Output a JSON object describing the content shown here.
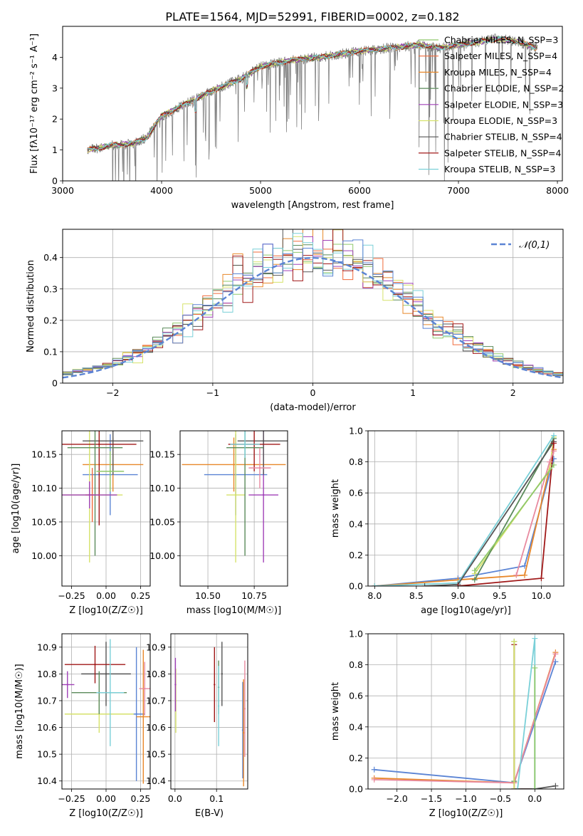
{
  "figure_title": "PLATE=1564, MJD=52991, FIBERID=0002, z=0.182",
  "colors": [
    "#8fc86b",
    "#f06a3a",
    "#e8882a",
    "#5a8a5a",
    "#a040b8",
    "#d6e26a",
    "#555555",
    "#a01818",
    "#7ad0d8",
    "#e88aa0",
    "#5b84d4"
  ],
  "chart_data": [
    {
      "id": "spectrum",
      "type": "line",
      "title": "PLATE=1564, MJD=52991, FIBERID=0002, z=0.182",
      "xlabel": "wavelength [Angstrom, rest frame]",
      "ylabel": "Flux [fλ10⁻¹⁷ erg cm⁻² s⁻¹ A⁻¹]",
      "xlim": [
        3000,
        8050
      ],
      "ylim": [
        0,
        5
      ],
      "xticks": [
        "3000",
        "4000",
        "5000",
        "6000",
        "7000",
        "8000"
      ],
      "yticks": [
        "0",
        "1",
        "2",
        "3",
        "4"
      ],
      "legend_position": "right",
      "grid": false,
      "continuum": {
        "x": [
          3250,
          3500,
          3700,
          3850,
          4000,
          4250,
          4500,
          4800,
          5000,
          5300,
          5600,
          6000,
          6300,
          6600,
          6800,
          7000,
          7200,
          7400,
          7600,
          7800
        ],
        "y": [
          1.0,
          1.15,
          1.2,
          1.4,
          2.1,
          2.5,
          2.9,
          3.3,
          3.7,
          3.9,
          4.0,
          4.2,
          4.3,
          4.4,
          4.3,
          4.4,
          4.5,
          4.6,
          4.5,
          4.3
        ]
      },
      "series": [
        {
          "name": "Chabrier MILES, N_SSP=3"
        },
        {
          "name": "Salpeter MILES, N_SSP=4"
        },
        {
          "name": "Kroupa MILES, N_SSP=4"
        },
        {
          "name": "Chabrier ELODIE, N_SSP=2"
        },
        {
          "name": "Salpeter ELODIE, N_SSP=3"
        },
        {
          "name": "Kroupa ELODIE, N_SSP=3"
        },
        {
          "name": "Chabrier STELIB, N_SSP=4"
        },
        {
          "name": "Salpeter STELIB, N_SSP=4"
        },
        {
          "name": "Kroupa STELIB, N_SSP=3"
        }
      ]
    },
    {
      "id": "residuals",
      "type": "line",
      "xlabel": "(data-model)/error",
      "ylabel": "Normed distribution",
      "xlim": [
        -2.5,
        2.5
      ],
      "ylim": [
        0,
        0.49
      ],
      "xticks": [
        -2,
        -1,
        0,
        1,
        2
      ],
      "yticks": [
        0.0,
        0.1,
        0.2,
        0.3,
        0.4
      ],
      "grid": true,
      "legend_position": "top-right",
      "legend": "𝒩(0,1)",
      "normal_curve": {
        "mean": 0,
        "sigma": 1
      },
      "histogram_bin_width": 0.1,
      "histogram_series": 9
    },
    {
      "id": "age_vs_Z",
      "type": "scatter",
      "xlabel": "Z [log10(Z/Z☉)]",
      "ylabel": "age [log10(age/yr)]",
      "xlim": [
        -0.32,
        0.32
      ],
      "ylim": [
        9.955,
        10.185
      ],
      "xticks": [
        "−0.25",
        "0.00",
        "0.25"
      ],
      "yticks": [
        "10.00",
        "10.05",
        "10.10",
        "10.15"
      ],
      "grid": true,
      "points": [
        {
          "x": 0.03,
          "y": 10.12,
          "c": 10,
          "xe": 0.2,
          "ye": 0.06
        },
        {
          "x": 0.05,
          "y": 10.135,
          "c": 2,
          "xe": 0.22,
          "ye": 0.04
        },
        {
          "x": -0.12,
          "y": 10.09,
          "c": 5,
          "xe": 0.24,
          "ye": 0.1
        },
        {
          "x": -0.1,
          "y": 10.09,
          "c": 1,
          "xe": 0.05,
          "ye": 0.04
        },
        {
          "x": 0.05,
          "y": 10.17,
          "c": 6,
          "xe": 0.22,
          "ye": 0.05
        },
        {
          "x": -0.05,
          "y": 10.165,
          "c": 7,
          "xe": 0.27,
          "ye": 0.12
        },
        {
          "x": -0.08,
          "y": 10.16,
          "c": 3,
          "xe": 0.2,
          "ye": 0.16
        },
        {
          "x": -0.12,
          "y": 10.09,
          "c": 4,
          "xe": 0.2,
          "ye": 0.02
        },
        {
          "x": 0.03,
          "y": 10.125,
          "c": 0,
          "xe": 0.1,
          "ye": 0.03
        }
      ]
    },
    {
      "id": "age_vs_mass",
      "type": "scatter",
      "xlabel": "mass [log10(M/M☉)]",
      "ylabel": "",
      "xlim": [
        10.35,
        10.93
      ],
      "ylim": [
        9.955,
        10.185
      ],
      "xticks": [
        "10.50",
        "10.75"
      ],
      "yticks": [
        "10.00",
        "10.05",
        "10.10",
        "10.15"
      ],
      "grid": true,
      "points": [
        {
          "x": 10.65,
          "y": 10.12,
          "c": 10,
          "xe": 0.17,
          "ye": 0.06
        },
        {
          "x": 10.64,
          "y": 10.135,
          "c": 2,
          "xe": 0.28,
          "ye": 0.04
        },
        {
          "x": 10.65,
          "y": 10.09,
          "c": 5,
          "xe": 0.05,
          "ye": 0.1
        },
        {
          "x": 10.8,
          "y": 10.09,
          "c": 4,
          "xe": 0.08,
          "ye": 0.1
        },
        {
          "x": 10.8,
          "y": 10.17,
          "c": 6,
          "xe": 0.14,
          "ye": 0.05
        },
        {
          "x": 10.75,
          "y": 10.165,
          "c": 7,
          "xe": 0.14,
          "ye": 0.04
        },
        {
          "x": 10.7,
          "y": 10.16,
          "c": 3,
          "xe": 0.1,
          "ye": 0.16
        },
        {
          "x": 10.7,
          "y": 10.165,
          "c": 8,
          "xe": 0.08,
          "ye": 0.02
        },
        {
          "x": 10.78,
          "y": 10.13,
          "c": 9,
          "xe": 0.06,
          "ye": 0.03
        }
      ]
    },
    {
      "id": "mass_weight_vs_age",
      "type": "line",
      "xlabel": "age [log10(age/yr)]",
      "ylabel": "mass weight",
      "xlim": [
        7.92,
        10.27
      ],
      "ylim": [
        0,
        1.0
      ],
      "xticks": [
        "8.0",
        "8.5",
        "9.0",
        "9.5",
        "10.0"
      ],
      "yticks": [
        "0.0",
        "0.2",
        "0.4",
        "0.6",
        "0.8",
        "1.0"
      ],
      "grid": true,
      "series": [
        {
          "c": 10,
          "x": [
            8.0,
            9.0,
            9.8,
            10.15
          ],
          "y": [
            0.0,
            0.05,
            0.13,
            0.82
          ]
        },
        {
          "c": 2,
          "x": [
            8.0,
            9.0,
            9.8,
            10.15
          ],
          "y": [
            0.0,
            0.04,
            0.07,
            0.88
          ]
        },
        {
          "c": 5,
          "x": [
            9.2,
            10.1,
            10.15
          ],
          "y": [
            0.08,
            0.75,
            0.96
          ]
        },
        {
          "c": 3,
          "x": [
            9.2,
            10.15
          ],
          "y": [
            0.04,
            0.95
          ]
        },
        {
          "c": 8,
          "x": [
            8.0,
            9.0,
            10.15
          ],
          "y": [
            0.0,
            0.02,
            0.97
          ]
        },
        {
          "c": 6,
          "x": [
            8.6,
            9.0,
            10.15
          ],
          "y": [
            0.0,
            0.01,
            0.93
          ]
        },
        {
          "c": 7,
          "x": [
            9.0,
            10.0,
            10.15
          ],
          "y": [
            0.0,
            0.05,
            0.92
          ]
        },
        {
          "c": 9,
          "x": [
            9.7,
            10.1,
            10.15
          ],
          "y": [
            0.07,
            0.8,
            0.87
          ]
        },
        {
          "c": 0,
          "x": [
            9.2,
            10.15
          ],
          "y": [
            0.1,
            0.78
          ]
        }
      ]
    },
    {
      "id": "mass_vs_Z",
      "type": "scatter",
      "xlabel": "Z [log10(Z/Z☉)]",
      "ylabel": "mass [log10(M/M☉)]",
      "xlim": [
        -0.32,
        0.32
      ],
      "ylim": [
        10.37,
        10.95
      ],
      "xticks": [
        "−0.25",
        "0.00",
        "0.25"
      ],
      "yticks": [
        "10.4",
        "10.5",
        "10.6",
        "10.7",
        "10.8",
        "10.9"
      ],
      "grid": true,
      "points": [
        {
          "x": 0.22,
          "y": 10.65,
          "c": 10,
          "xe": 0.06,
          "ye": 0.25
        },
        {
          "x": 0.27,
          "y": 10.64,
          "c": 2,
          "xe": 0.05,
          "ye": 0.25
        },
        {
          "x": -0.05,
          "y": 10.65,
          "c": 5,
          "xe": 0.25,
          "ye": 0.07
        },
        {
          "x": -0.28,
          "y": 10.76,
          "c": 4,
          "xe": 0.05,
          "ye": 0.05
        },
        {
          "x": 0.0,
          "y": 10.8,
          "c": 6,
          "xe": 0.18,
          "ye": 0.12
        },
        {
          "x": -0.08,
          "y": 10.835,
          "c": 7,
          "xe": 0.22,
          "ye": 0.07
        },
        {
          "x": -0.05,
          "y": 10.73,
          "c": 3,
          "xe": 0.2,
          "ye": 0.08
        },
        {
          "x": 0.03,
          "y": 10.73,
          "c": 8,
          "xe": 0.1,
          "ye": 0.2
        },
        {
          "x": 0.28,
          "y": 10.745,
          "c": 9,
          "xe": 0.04,
          "ye": 0.1
        }
      ]
    },
    {
      "id": "mass_vs_EBV",
      "type": "scatter",
      "xlabel": "E(B-V)",
      "ylabel": "",
      "xlim": [
        -0.01,
        0.175
      ],
      "ylim": [
        10.37,
        10.95
      ],
      "xticks": [
        "0.0",
        "0.1"
      ],
      "yticks": [
        "10.4",
        "10.5",
        "10.6",
        "10.7",
        "10.8",
        "10.9"
      ],
      "grid": true,
      "points": [
        {
          "x": 0.163,
          "y": 10.59,
          "c": 10,
          "ye": 0.18
        },
        {
          "x": 0.165,
          "y": 10.58,
          "c": 2,
          "ye": 0.2
        },
        {
          "x": 0.002,
          "y": 10.7,
          "c": 5,
          "ye": 0.12
        },
        {
          "x": 0.001,
          "y": 10.76,
          "c": 4,
          "ye": 0.1
        },
        {
          "x": 0.113,
          "y": 10.8,
          "c": 6,
          "ye": 0.12
        },
        {
          "x": 0.095,
          "y": 10.76,
          "c": 7,
          "ye": 0.14
        },
        {
          "x": 0.105,
          "y": 10.75,
          "c": 3,
          "ye": 0.1
        },
        {
          "x": 0.105,
          "y": 10.68,
          "c": 8,
          "ye": 0.15
        },
        {
          "x": 0.168,
          "y": 10.67,
          "c": 9,
          "ye": 0.18
        }
      ]
    },
    {
      "id": "mass_weight_vs_Z",
      "type": "line",
      "xlabel": "Z [log10(Z/Z☉)]",
      "ylabel": "mass weight",
      "xlim": [
        -2.42,
        0.42
      ],
      "ylim": [
        0,
        1.0
      ],
      "xticks": [
        "−2.0",
        "−1.5",
        "−1.0",
        "−0.5",
        "0.0"
      ],
      "yticks": [
        "0.0",
        "0.2",
        "0.4",
        "0.6",
        "0.8",
        "1.0"
      ],
      "grid": true,
      "series": [
        {
          "c": 10,
          "x": [
            -2.33,
            -0.3,
            0.3
          ],
          "y": [
            0.125,
            0.04,
            0.82
          ]
        },
        {
          "c": 2,
          "x": [
            -2.33,
            -0.3,
            0.3
          ],
          "y": [
            0.07,
            0.04,
            0.88
          ]
        },
        {
          "c": 9,
          "x": [
            -2.33,
            -0.3,
            0.3
          ],
          "y": [
            0.06,
            0.04,
            0.87
          ]
        },
        {
          "c": 7,
          "x": [
            -0.3,
            -0.3,
            0.0
          ],
          "y": [
            0.93,
            0.0,
            0.0
          ]
        },
        {
          "c": 6,
          "x": [
            -0.3,
            0.0,
            0.3
          ],
          "y": [
            0.0,
            0.0,
            0.02
          ]
        },
        {
          "c": 3,
          "x": [
            -0.3,
            -0.3
          ],
          "y": [
            0.95,
            0.05
          ]
        },
        {
          "c": 5,
          "x": [
            -0.3,
            -0.3
          ],
          "y": [
            0.95,
            0.0
          ]
        },
        {
          "c": 8,
          "x": [
            -0.25,
            0.0,
            0.0
          ],
          "y": [
            0.0,
            0.97,
            0.0
          ]
        },
        {
          "c": 0,
          "x": [
            0.0,
            0.0
          ],
          "y": [
            0.78,
            0.0
          ]
        }
      ]
    }
  ]
}
